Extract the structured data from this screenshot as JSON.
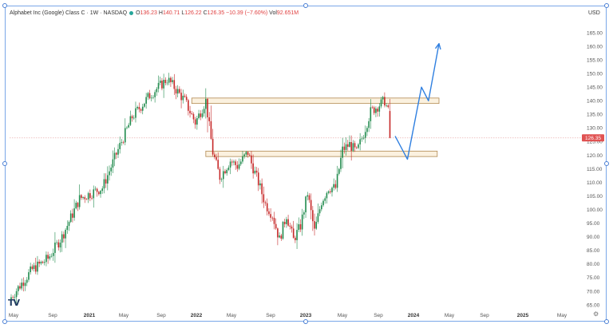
{
  "header": {
    "symbol_title": "Alphabet Inc (Google) Class C · 1W · NASDAQ",
    "open_label": "O",
    "open": "136.23",
    "high_label": "H",
    "high": "140.71",
    "low_label": "L",
    "low": "126.22",
    "close_label": "C",
    "close": "126.35",
    "change": "−10.39 (−7.60%)",
    "volume_label": "Vol",
    "volume": "92.651M"
  },
  "currency": "USD",
  "logo_text": "TV",
  "settings_icon": "gear-icon",
  "colors": {
    "up": "#1f8a4c",
    "down": "#c62828",
    "zone_fill": "#fbf1df",
    "zone_stroke": "#b08850",
    "projection": "#2f7fe0",
    "last_price_label": "#e05252",
    "price_line": "#e59f9f"
  },
  "chart_data": {
    "type": "candlestick",
    "y_ticks": [
      "65.00",
      "70.00",
      "75.00",
      "80.00",
      "85.00",
      "90.00",
      "95.00",
      "100.00",
      "105.00",
      "110.00",
      "115.00",
      "120.00",
      "125.00",
      "130.00",
      "135.00",
      "140.00",
      "145.00",
      "150.00",
      "155.00",
      "160.00",
      "165.00"
    ],
    "ylim": [
      63,
      170
    ],
    "x_ticks": [
      {
        "label": "May",
        "year": false
      },
      {
        "label": "Sep",
        "year": false
      },
      {
        "label": "2021",
        "year": true
      },
      {
        "label": "May",
        "year": false
      },
      {
        "label": "Sep",
        "year": false
      },
      {
        "label": "2022",
        "year": true
      },
      {
        "label": "May",
        "year": false
      },
      {
        "label": "Sep",
        "year": false
      },
      {
        "label": "2023",
        "year": true
      },
      {
        "label": "May",
        "year": false
      },
      {
        "label": "Sep",
        "year": false
      },
      {
        "label": "2024",
        "year": true
      },
      {
        "label": "May",
        "year": false
      },
      {
        "label": "Sep",
        "year": false
      },
      {
        "label": "2025",
        "year": true
      },
      {
        "label": "May",
        "year": false
      }
    ],
    "trend_anchors": [
      {
        "t": 0,
        "p": 67
      },
      {
        "t": 13,
        "p": 78
      },
      {
        "t": 22,
        "p": 82
      },
      {
        "t": 30,
        "p": 90
      },
      {
        "t": 40,
        "p": 104
      },
      {
        "t": 53,
        "p": 108
      },
      {
        "t": 62,
        "p": 122
      },
      {
        "t": 70,
        "p": 134
      },
      {
        "t": 80,
        "p": 142
      },
      {
        "t": 90,
        "p": 148
      },
      {
        "t": 94,
        "p": 145
      },
      {
        "t": 100,
        "p": 140
      },
      {
        "t": 106,
        "p": 132
      },
      {
        "t": 112,
        "p": 140
      },
      {
        "t": 116,
        "p": 121
      },
      {
        "t": 120,
        "p": 112
      },
      {
        "t": 126,
        "p": 118
      },
      {
        "t": 130,
        "p": 116
      },
      {
        "t": 136,
        "p": 121
      },
      {
        "t": 138,
        "p": 117
      },
      {
        "t": 142,
        "p": 110
      },
      {
        "t": 146,
        "p": 102
      },
      {
        "t": 150,
        "p": 98
      },
      {
        "t": 154,
        "p": 89
      },
      {
        "t": 158,
        "p": 98
      },
      {
        "t": 162,
        "p": 89
      },
      {
        "t": 166,
        "p": 94
      },
      {
        "t": 170,
        "p": 106
      },
      {
        "t": 174,
        "p": 92
      },
      {
        "t": 178,
        "p": 103
      },
      {
        "t": 182,
        "p": 108
      },
      {
        "t": 186,
        "p": 108
      },
      {
        "t": 190,
        "p": 122
      },
      {
        "t": 194,
        "p": 124
      },
      {
        "t": 198,
        "p": 121
      },
      {
        "t": 202,
        "p": 128
      },
      {
        "t": 206,
        "p": 136
      },
      {
        "t": 210,
        "p": 138
      },
      {
        "t": 214,
        "p": 140
      },
      {
        "t": 216,
        "p": 136
      }
    ],
    "last_candle": {
      "open": 136.23,
      "high": 140.71,
      "low": 126.22,
      "close": 126.35
    },
    "last_price_label": "126.35",
    "resistance_zone": {
      "low": 139.0,
      "high": 141.0,
      "start_t": 103,
      "end_t": 244
    },
    "support_zone": {
      "low": 119.5,
      "high": 121.5,
      "start_t": 111,
      "end_t": 243
    },
    "projection_path": [
      {
        "t": 219,
        "p": 127
      },
      {
        "t": 226,
        "p": 118.5
      },
      {
        "t": 234,
        "p": 145
      },
      {
        "t": 238,
        "p": 140
      },
      {
        "t": 244,
        "p": 161
      }
    ]
  }
}
